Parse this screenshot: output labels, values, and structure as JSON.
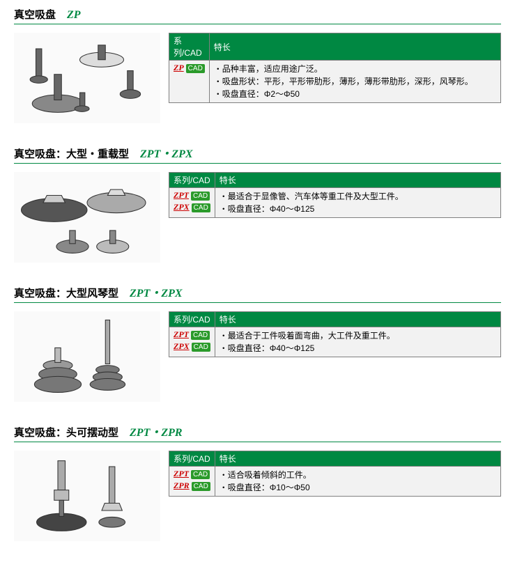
{
  "colors": {
    "green": "#008842",
    "border": "#808080",
    "cell_bg": "#f2f2f2",
    "link_red": "#cc0000",
    "cad_green": "#2a9a2a"
  },
  "table_header": {
    "series": "系列/CAD",
    "features": "特长"
  },
  "cad_label": "CAD",
  "sections": [
    {
      "title": "真空吸盘",
      "model": "ZP",
      "series": [
        {
          "name": "ZP"
        }
      ],
      "features": [
        "品种丰富，适应用途广泛。",
        "吸盘形状：平形，平形带肋形，薄形，薄形带肋形，深形，风琴形。",
        "吸盘直径：Φ2～Φ50"
      ]
    },
    {
      "title": "真空吸盘：大型・重载型",
      "model": "ZPT・ZPX",
      "series": [
        {
          "name": "ZPT"
        },
        {
          "name": "ZPX"
        }
      ],
      "features": [
        "最适合于显像管、汽车体等重工件及大型工件。",
        "吸盘直径：Φ40～Φ125"
      ]
    },
    {
      "title": "真空吸盘：大型风琴型",
      "model": "ZPT・ZPX",
      "series": [
        {
          "name": "ZPT"
        },
        {
          "name": "ZPX"
        }
      ],
      "features": [
        "最适合于工件吸着面弯曲，大工件及重工件。",
        "吸盘直径：Φ40～Φ125"
      ]
    },
    {
      "title": "真空吸盘：头可摆动型",
      "model": "ZPT・ZPR",
      "series_wide": true,
      "series": [
        {
          "name": "ZPT"
        },
        {
          "name": "ZPR"
        }
      ],
      "features": [
        "适合吸着倾斜的工件。",
        "吸盘直径：Φ10～Φ50"
      ]
    }
  ]
}
